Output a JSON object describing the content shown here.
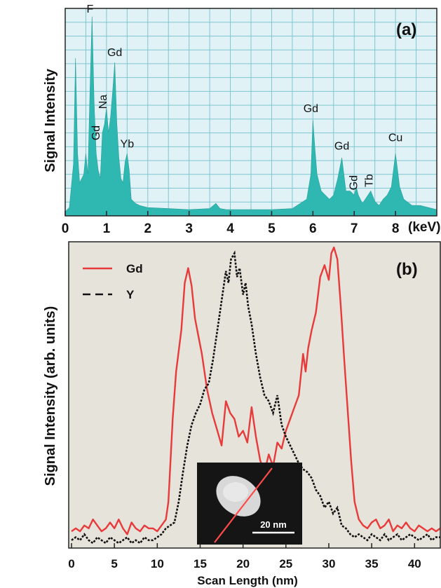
{
  "colors": {
    "spectrum_fill": "#2fb8b2",
    "grid": "#7fc6d2",
    "plot_a_bg": "#e1f2f6",
    "plot_b_bg": "#e5e3da",
    "gd_line": "#e83a3a",
    "y_line": "#111111",
    "inset_bg": "#151515",
    "inset_particle": "#d8d8d8"
  },
  "chart_data": [
    {
      "type": "area",
      "panel_label": "(a)",
      "ylabel": "Signal Intensity",
      "xlabel": "",
      "x_unit_label": "(keV)",
      "xlim": [
        0,
        9
      ],
      "ylim": [
        0,
        1
      ],
      "xticks": [
        "0",
        "1",
        "2",
        "3",
        "4",
        "5",
        "6",
        "7",
        "8"
      ],
      "grid": true,
      "series": [
        {
          "x": [
            0,
            0.1,
            0.2,
            0.25,
            0.3,
            0.35,
            0.45,
            0.5,
            0.55,
            0.6,
            0.65,
            0.7,
            0.75,
            0.8,
            0.85,
            0.9,
            0.95,
            1.0,
            1.05,
            1.1,
            1.15,
            1.2,
            1.25,
            1.3,
            1.35,
            1.4,
            1.45,
            1.5,
            1.55,
            1.6,
            1.7,
            1.8,
            2.0,
            2.5,
            3.0,
            3.5,
            3.65,
            3.75,
            3.9,
            4.5,
            5.0,
            5.5,
            5.85,
            5.95,
            6.0,
            6.05,
            6.1,
            6.2,
            6.3,
            6.4,
            6.5,
            6.6,
            6.7,
            6.75,
            6.8,
            6.9,
            7.0,
            7.05,
            7.1,
            7.2,
            7.3,
            7.4,
            7.5,
            7.6,
            7.7,
            7.8,
            7.9,
            8.0,
            8.05,
            8.1,
            8.2,
            8.4,
            8.6,
            8.8,
            9.0
          ],
          "values": [
            0.02,
            0.04,
            0.25,
            0.76,
            0.3,
            0.16,
            0.2,
            0.3,
            0.2,
            0.6,
            0.96,
            0.55,
            0.3,
            0.22,
            0.18,
            0.4,
            0.44,
            0.52,
            0.4,
            0.48,
            0.6,
            0.74,
            0.45,
            0.28,
            0.18,
            0.16,
            0.26,
            0.3,
            0.22,
            0.08,
            0.06,
            0.05,
            0.04,
            0.035,
            0.03,
            0.035,
            0.06,
            0.035,
            0.03,
            0.03,
            0.03,
            0.035,
            0.08,
            0.2,
            0.46,
            0.32,
            0.2,
            0.12,
            0.1,
            0.08,
            0.1,
            0.18,
            0.28,
            0.2,
            0.12,
            0.12,
            0.1,
            0.14,
            0.1,
            0.06,
            0.09,
            0.12,
            0.07,
            0.05,
            0.08,
            0.1,
            0.14,
            0.3,
            0.22,
            0.14,
            0.08,
            0.05,
            0.05,
            0.04,
            0.03
          ]
        }
      ],
      "annotations": [
        {
          "text": "F",
          "x": 0.6,
          "y": 0.98,
          "rotate": 0
        },
        {
          "text": "Gd",
          "x": 1.2,
          "y": 0.77,
          "rotate": 0
        },
        {
          "text": "Na",
          "x": 1.0,
          "y": 0.55,
          "rotate": -90
        },
        {
          "text": "Gd",
          "x": 0.83,
          "y": 0.4,
          "rotate": -90
        },
        {
          "text": "Yb",
          "x": 1.5,
          "y": 0.33,
          "rotate": 0
        },
        {
          "text": "Gd",
          "x": 5.95,
          "y": 0.5,
          "rotate": 0
        },
        {
          "text": "Gd",
          "x": 6.7,
          "y": 0.32,
          "rotate": 0
        },
        {
          "text": "Gd",
          "x": 7.07,
          "y": 0.16,
          "rotate": -90
        },
        {
          "text": "Tb",
          "x": 7.45,
          "y": 0.17,
          "rotate": -90
        },
        {
          "text": "Cu",
          "x": 8.0,
          "y": 0.36,
          "rotate": 0
        }
      ]
    },
    {
      "type": "line",
      "panel_label": "(b)",
      "ylabel": "Signal Intensity (arb. units)",
      "xlabel": "Scan Length (nm)",
      "xlim": [
        0,
        43
      ],
      "ylim": [
        0,
        1
      ],
      "xticks": [
        0,
        5,
        10,
        15,
        20,
        25,
        30,
        35,
        40
      ],
      "grid": false,
      "legend": {
        "position": "top-left",
        "entries": [
          "Gd",
          "Y"
        ]
      },
      "series": [
        {
          "name": "Gd",
          "x": [
            0,
            0.5,
            1,
            1.5,
            2,
            2.5,
            3,
            3.5,
            4,
            4.5,
            5,
            5.5,
            6,
            6.5,
            7,
            7.5,
            8,
            8.5,
            9,
            9.5,
            10,
            10.5,
            11,
            11.3,
            11.8,
            12.2,
            12.8,
            13.2,
            13.6,
            14,
            14.4,
            14.8,
            15.2,
            15.8,
            16.4,
            17,
            17.5,
            18,
            18.5,
            19,
            19.5,
            20,
            20.5,
            21,
            21.5,
            22,
            22.5,
            23,
            23.5,
            24,
            24.5,
            25,
            25.5,
            26,
            26.5,
            27,
            27.3,
            27.6,
            28,
            28.5,
            29,
            29.5,
            30,
            30.3,
            30.6,
            31,
            31.4,
            31.8,
            32.2,
            32.6,
            33,
            33.5,
            34,
            34.5,
            35,
            35.5,
            36,
            36.5,
            37,
            37.5,
            38,
            38.5,
            39,
            39.5,
            40,
            40.5,
            41,
            41.5,
            42,
            42.5,
            43
          ],
          "values": [
            0.04,
            0.05,
            0.04,
            0.06,
            0.05,
            0.08,
            0.06,
            0.04,
            0.05,
            0.07,
            0.05,
            0.08,
            0.05,
            0.03,
            0.07,
            0.05,
            0.04,
            0.06,
            0.05,
            0.05,
            0.04,
            0.06,
            0.08,
            0.14,
            0.42,
            0.58,
            0.72,
            0.88,
            0.93,
            0.87,
            0.76,
            0.7,
            0.64,
            0.52,
            0.44,
            0.38,
            0.33,
            0.48,
            0.44,
            0.42,
            0.36,
            0.38,
            0.34,
            0.46,
            0.36,
            0.28,
            0.24,
            0.3,
            0.26,
            0.34,
            0.32,
            0.38,
            0.42,
            0.46,
            0.5,
            0.64,
            0.58,
            0.66,
            0.72,
            0.78,
            0.9,
            0.94,
            0.89,
            0.98,
            1.0,
            0.96,
            0.8,
            0.62,
            0.45,
            0.28,
            0.14,
            0.08,
            0.06,
            0.05,
            0.07,
            0.08,
            0.05,
            0.06,
            0.08,
            0.04,
            0.06,
            0.05,
            0.07,
            0.05,
            0.04,
            0.06,
            0.05,
            0.04,
            0.05,
            0.04,
            0.05
          ]
        },
        {
          "name": "Y",
          "x": [
            0,
            0.5,
            1,
            1.5,
            2,
            2.5,
            3,
            3.5,
            4,
            4.5,
            5,
            5.5,
            6,
            6.5,
            7,
            7.5,
            8,
            8.5,
            9,
            9.5,
            10,
            10.5,
            11,
            11.5,
            12,
            12.5,
            13,
            13.5,
            14,
            14.5,
            15,
            15.5,
            16,
            16.5,
            17,
            17.5,
            18,
            18.3,
            18.6,
            19,
            19.3,
            19.6,
            20,
            20.3,
            20.6,
            21,
            21.5,
            22,
            22.5,
            23,
            23.5,
            24,
            24.5,
            25,
            25.5,
            26,
            26.5,
            27,
            27.5,
            28,
            28.5,
            29,
            29.5,
            30,
            30.5,
            31,
            31.5,
            32,
            32.5,
            33,
            33.5,
            34,
            34.5,
            35,
            35.5,
            36,
            36.5,
            37,
            37.5,
            38,
            38.5,
            39,
            39.5,
            40,
            40.5,
            41,
            41.5,
            42,
            42.5,
            43
          ],
          "values": [
            0.01,
            0.02,
            0.01,
            0.03,
            0.01,
            0.0,
            0.02,
            0.01,
            0.0,
            0.02,
            0.01,
            0.0,
            0.01,
            0.02,
            0.0,
            0.01,
            0.0,
            0.02,
            0.01,
            0.01,
            0.02,
            0.03,
            0.05,
            0.06,
            0.07,
            0.14,
            0.24,
            0.33,
            0.4,
            0.44,
            0.47,
            0.52,
            0.54,
            0.62,
            0.72,
            0.82,
            0.92,
            0.88,
            0.96,
            0.98,
            0.9,
            0.93,
            0.84,
            0.88,
            0.8,
            0.74,
            0.64,
            0.56,
            0.5,
            0.48,
            0.44,
            0.5,
            0.4,
            0.36,
            0.33,
            0.3,
            0.27,
            0.25,
            0.24,
            0.22,
            0.18,
            0.16,
            0.12,
            0.14,
            0.1,
            0.12,
            0.06,
            0.05,
            0.03,
            0.02,
            0.03,
            0.02,
            0.01,
            0.03,
            0.02,
            0.01,
            0.03,
            0.01,
            0.02,
            0.03,
            0.01,
            0.02,
            0.03,
            0.02,
            0.01,
            0.02,
            0.03,
            0.01,
            0.02,
            0.02
          ]
        }
      ],
      "inset": {
        "scalebar_label": "20 nm"
      }
    }
  ]
}
